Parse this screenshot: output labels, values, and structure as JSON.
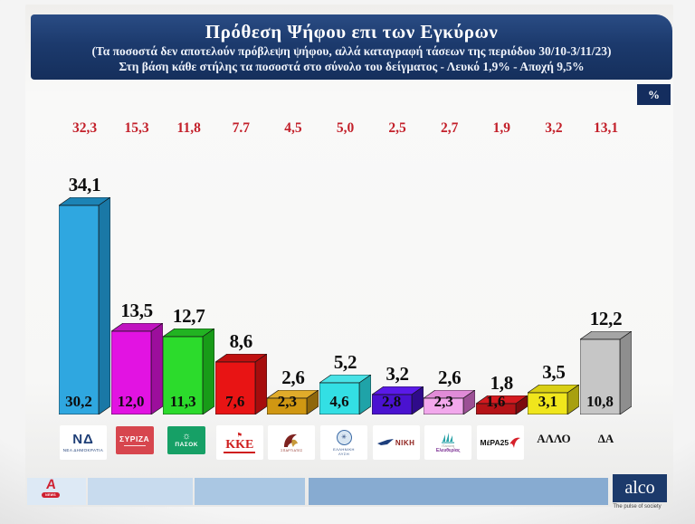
{
  "header": {
    "title": "Πρόθεση Ψήφου επι των Εγκύρων",
    "subtitle1": "(Τα ποσοστά δεν αποτελούν πρόβλεψη ψήφου, αλλά καταγραφή τάσεων της περιόδου  30/10-3/11/23)",
    "subtitle2": "Στη βάση κάθε στήλης τα ποσοστά στο σύνολο του δείγματος - Λευκό 1,9% - Αποχή 9,5%",
    "percent_badge": "%"
  },
  "parties": [
    {
      "id": "nd",
      "name": "ΝΕΑ ΔΗΜΟΚΡΑΤΙΑ",
      "red_label": "32,3",
      "top_label": "34,1",
      "base_label": "30,2",
      "bar": {
        "front": "#2FA7E0",
        "top": "#1C83B5",
        "side": "#1A78A6"
      },
      "logo": {
        "kind": "nd",
        "main": "ΝΔ",
        "sub": "ΝΕΑ ΔΗΜΟΚΡΑΤΙΑ"
      }
    },
    {
      "id": "syriza",
      "name": "ΣΥΡΙΖΑ",
      "red_label": "15,3",
      "top_label": "13,5",
      "base_label": "12,0",
      "bar": {
        "front": "#E213E2",
        "top": "#C013C0",
        "side": "#9C0E9C"
      },
      "logo": {
        "kind": "syriza",
        "bg": "#d7464e",
        "main": "ΣΥΡΙΖΑ"
      }
    },
    {
      "id": "pasok",
      "name": "ΠΑΣΟΚ",
      "red_label": "11,8",
      "top_label": "12,7",
      "base_label": "11,3",
      "bar": {
        "front": "#2CDB2C",
        "top": "#22B322",
        "side": "#189B18"
      },
      "logo": {
        "kind": "pasok",
        "bg": "#16a066",
        "sun": "☼",
        "main": "ΠΑΣΟΚ"
      }
    },
    {
      "id": "kke",
      "name": "ΚΚΕ",
      "red_label": "7.7",
      "top_label": "8,6",
      "base_label": "7,6",
      "bar": {
        "front": "#E81414",
        "top": "#C01010",
        "side": "#A60D0D"
      },
      "logo": {
        "kind": "kke",
        "flag": "⚑",
        "main": "ΚΚΕ"
      }
    },
    {
      "id": "spartiates",
      "name": "ΣΠΑΡΤΙΑΤΕΣ",
      "red_label": "4,5",
      "top_label": "2,6",
      "base_label": "2,3",
      "bar": {
        "front": "#D09712",
        "top": "#E0AB2A",
        "side": "#8F670B"
      },
      "logo": {
        "kind": "spartiates",
        "sub": "ΣΠΑΡΤΙΑΤΕΣ"
      }
    },
    {
      "id": "elliniki-lysi",
      "name": "ΕΛΛΗΝΙΚΗ ΛΥΣΗ",
      "red_label": "5,0",
      "top_label": "5,2",
      "base_label": "4,6",
      "bar": {
        "front": "#33DFE4",
        "top": "#49E2E6",
        "side": "#1FA3A8"
      },
      "logo": {
        "kind": "elliniki-lysi",
        "emblem": "✳",
        "sub1": "ΕΛΛΗΝΙΚΗ",
        "sub2": "ΛΥΣΗ"
      }
    },
    {
      "id": "niki",
      "name": "ΝΙΚΗ",
      "red_label": "2,5",
      "top_label": "3,2",
      "base_label": "2,8",
      "bar": {
        "front": "#4A12D0",
        "top": "#5A1AE8",
        "side": "#2F0B8A"
      },
      "logo": {
        "kind": "niki",
        "main": "ΝΙΚΗ"
      }
    },
    {
      "id": "plefsi-eleftherias",
      "name": "ΠΛΕΥΣΗ ΕΛΕΥΘΕΡΙΑΣ",
      "red_label": "2,7",
      "top_label": "2,6",
      "base_label": "2,3",
      "bar": {
        "front": "#F2A8EC",
        "top": "#E08BD7",
        "side": "#9C5095"
      },
      "logo": {
        "kind": "plefsi",
        "sub1": "Πλεύση",
        "sub2": "Ελευθερίας"
      }
    },
    {
      "id": "mera25",
      "name": "ΜέΡΑ25",
      "red_label": "1,9",
      "top_label": "1,8",
      "base_label": "1,6",
      "bar": {
        "front": "#B51317",
        "top": "#D41A1F",
        "side": "#7C0B0E"
      },
      "logo": {
        "kind": "mera25",
        "main": "ΜέΡΑ25"
      }
    },
    {
      "id": "allo",
      "name": "ΑΛΛΟ",
      "red_label": "3,2",
      "top_label": "3,5",
      "base_label": "3,1",
      "bar": {
        "front": "#F0E61C",
        "top": "#D9CF14",
        "side": "#A8A010"
      },
      "logo": {
        "kind": "plain",
        "main": "ΑΛΛΟ"
      }
    },
    {
      "id": "da",
      "name": "ΔΑ",
      "red_label": "13,1",
      "top_label": "12,2",
      "base_label": "10,8",
      "bar": {
        "front": "#C6C6C6",
        "top": "#A5A5A5",
        "side": "#8E8E8E"
      },
      "logo": {
        "kind": "plain",
        "main": "ΔΑ"
      }
    }
  ],
  "chart_data": {
    "type": "bar",
    "bar_style": "3d",
    "title": "Πρόθεση Ψήφου επι των Εγκύρων",
    "subtitle": "(Τα ποσοστά δεν αποτελούν πρόβλεψη ψήφου, αλλά καταγραφή τάσεων της περιόδου  30/10-3/11/23)",
    "note": "Στη βάση κάθε στήλης τα ποσοστά στο σύνολο του δείγματος - Λευκό 1,9% - Αποχή 9,5%",
    "unit": "%",
    "categories": [
      "ΝΕΑ ΔΗΜΟΚΡΑΤΙΑ",
      "ΣΥΡΙΖΑ",
      "ΠΑΣΟΚ",
      "ΚΚΕ",
      "ΣΠΑΡΤΙΑΤΕΣ",
      "ΕΛΛΗΝΙΚΗ ΛΥΣΗ",
      "ΝΙΚΗ",
      "ΠΛΕΥΣΗ ΕΛΕΥΘΕΡΙΑΣ",
      "ΜέΡΑ25",
      "ΑΛΛΟ",
      "ΔΑ"
    ],
    "series": [
      {
        "name": "bar_top_labels (επί των εγκύρων)",
        "values": [
          34.1,
          13.5,
          12.7,
          8.6,
          2.6,
          5.2,
          3.2,
          2.6,
          1.8,
          3.5,
          12.2
        ]
      },
      {
        "name": "bar_base_labels (στο σύνολο του δείγματος)",
        "values": [
          30.2,
          12.0,
          11.3,
          7.6,
          2.3,
          4.6,
          2.8,
          2.3,
          1.6,
          3.1,
          10.8
        ]
      },
      {
        "name": "red_row_values",
        "values": [
          32.3,
          15.3,
          11.8,
          7.7,
          4.5,
          5.0,
          2.5,
          2.7,
          1.9,
          3.2,
          13.1
        ]
      }
    ],
    "ylim": [
      0,
      36
    ],
    "grid": false,
    "legend": "none",
    "bar_colors": [
      "#2FA7E0",
      "#E213E2",
      "#2CDB2C",
      "#E81414",
      "#D09712",
      "#33DFE4",
      "#4A12D0",
      "#F2A8EC",
      "#B51317",
      "#F0E61C",
      "#C6C6C6"
    ]
  },
  "footer": {
    "alpha_news": {
      "letter": "A",
      "pill": "NEWS"
    },
    "segments": [
      {
        "color": "#dde9f5"
      },
      {
        "color": "#c8dbee"
      },
      {
        "color": "#aac7e3"
      },
      {
        "color": "#87abd1"
      }
    ],
    "alco_label": "alco",
    "alco_tagline": "The pulse of society"
  }
}
